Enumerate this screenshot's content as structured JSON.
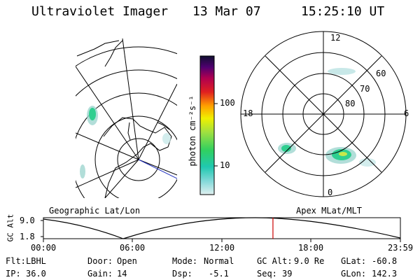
{
  "header": {
    "instrument": "Ultraviolet Imager",
    "date": "13 Mar 07",
    "time": "15:25:10 UT"
  },
  "colorbar": {
    "label": "photon cm⁻²s⁻¹",
    "ticks": [
      "100",
      "10"
    ]
  },
  "maps": {
    "left_label": "Geographic Lat/Lon",
    "right_label": "Apex MLat/MLT"
  },
  "polar_plot": {
    "mlt_labels": {
      "top": "12",
      "left": "18",
      "right": "6",
      "bottom": "0"
    },
    "mlat_labels": [
      "60",
      "70",
      "80"
    ]
  },
  "altitude_plot": {
    "ylabel": "GC Alt",
    "y_ticks": [
      "9.0",
      "1.8"
    ],
    "x_ticks": [
      "00:00",
      "06:00",
      "12:00",
      "18:00",
      "23:59"
    ],
    "current_time_fraction": 0.643
  },
  "status": {
    "flt_label": "Flt:",
    "flt": "LBHL",
    "door_label": "Door:",
    "door": "Open",
    "mode_label": "Mode:",
    "mode": "Normal",
    "gcalt_label": "GC Alt:",
    "gcalt": "9.0 Re",
    "glat_label": "GLat:",
    "glat": "-60.8",
    "ip_label": "IP:",
    "ip": "36.0",
    "gain_label": "Gain:",
    "gain": "14",
    "dsp_label": "Dsp:",
    "dsp": "-5.1",
    "seq_label": "Seq:",
    "seq": "39",
    "glon_label": "GLon:",
    "glon": "142.3"
  },
  "colors": {
    "emission": "#9fd6cf",
    "emission_bright": "#2fcf90",
    "emission_peak": "#c8e84a",
    "time_marker": "#cc0000"
  }
}
